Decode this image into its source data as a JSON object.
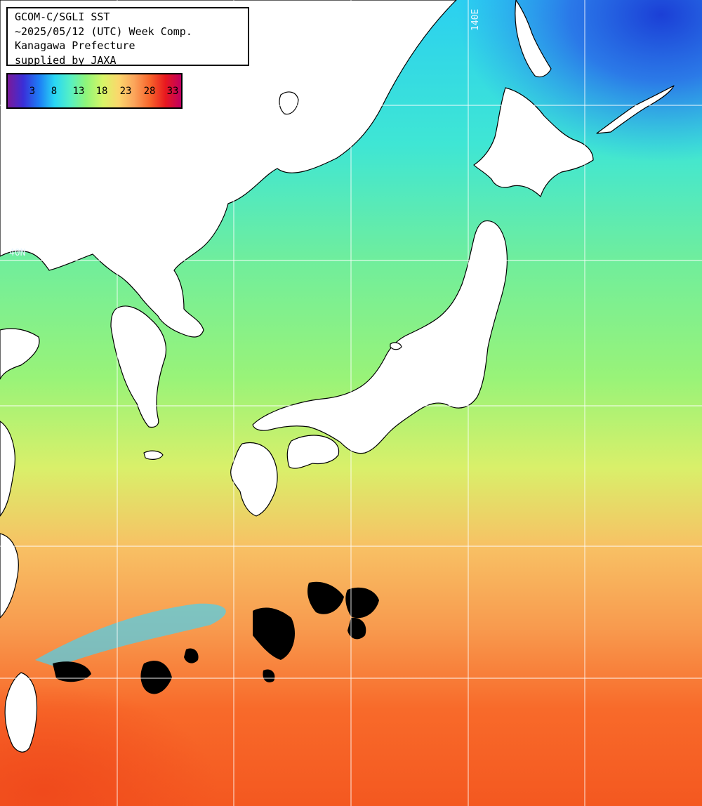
{
  "title": {
    "line1": "GCOM-C/SGLI SST",
    "line2": "~2025/05/12 (UTC) Week Comp.",
    "line3": "Kanagawa Prefecture",
    "line4": "supplied by JAXA"
  },
  "colorbar": {
    "ticks": [
      "3",
      "8",
      "13",
      "18",
      "23",
      "28",
      "33"
    ],
    "colors": [
      "#7a1a9a",
      "#3a2fd8",
      "#1d7cf5",
      "#29d6f4",
      "#55f0c5",
      "#8ef57a",
      "#d8f567",
      "#fbd76c",
      "#fba45b",
      "#f8652b",
      "#e8181f",
      "#c00060"
    ]
  },
  "grid_labels": {
    "longitude": "140E",
    "latitude": "40N"
  },
  "colors": {
    "land": "#ffffff",
    "coastline": "#000000",
    "cloud_no_data": "#000000",
    "grid": "#ffffff"
  }
}
